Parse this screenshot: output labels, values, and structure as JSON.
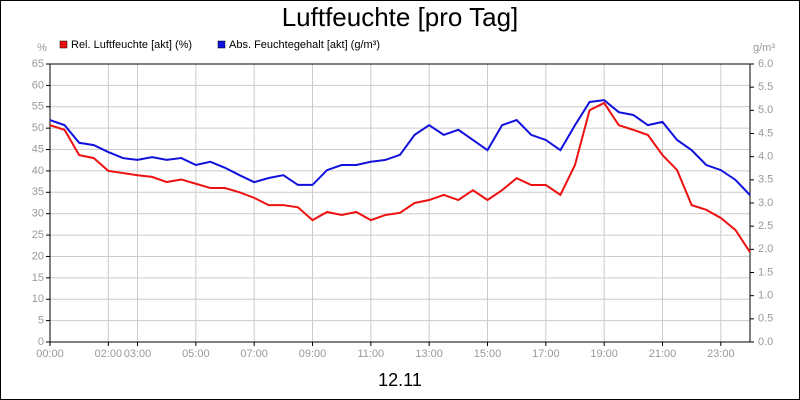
{
  "chart_data": {
    "type": "line",
    "title": "Luftfeuchte [pro Tag]",
    "xlabel": "12.11",
    "ylabel": "%",
    "y2label": "g/m³",
    "x": [
      0,
      0.5,
      1,
      1.5,
      2,
      2.5,
      3,
      3.5,
      4,
      4.5,
      5,
      5.5,
      6,
      6.5,
      7,
      7.5,
      8,
      8.5,
      9,
      9.5,
      10,
      10.5,
      11,
      11.5,
      12,
      12.5,
      13,
      13.5,
      14,
      14.5,
      15,
      15.5,
      16,
      16.5,
      17,
      17.5,
      18,
      18.5,
      19,
      19.5,
      20,
      20.5,
      21,
      21.5,
      22,
      22.5,
      23,
      23.5,
      24
    ],
    "xlim": [
      0,
      24
    ],
    "xticks": [
      {
        "value": 0,
        "label": "00:00"
      },
      {
        "value": 2,
        "label": "02:00"
      },
      {
        "value": 3,
        "label": "03:00"
      },
      {
        "value": 5,
        "label": "05:00"
      },
      {
        "value": 7,
        "label": "07:00"
      },
      {
        "value": 9,
        "label": "09:00"
      },
      {
        "value": 11,
        "label": "11:00"
      },
      {
        "value": 13,
        "label": "13:00"
      },
      {
        "value": 15,
        "label": "15:00"
      },
      {
        "value": 17,
        "label": "17:00"
      },
      {
        "value": 19,
        "label": "19:00"
      },
      {
        "value": 21,
        "label": "21:00"
      },
      {
        "value": 23,
        "label": "23:00"
      }
    ],
    "ylim": [
      0,
      65
    ],
    "yticks": [
      0,
      5,
      10,
      15,
      20,
      25,
      30,
      35,
      40,
      45,
      50,
      55,
      60,
      65
    ],
    "y2lim": [
      0,
      6
    ],
    "y2ticks": [
      {
        "value": 0,
        "label": "0.0"
      },
      0.5,
      {
        "value": 1,
        "label": "1.0"
      },
      1.5,
      {
        "value": 2,
        "label": "2.0"
      },
      2.5,
      {
        "value": 3,
        "label": "3.0"
      },
      3.5,
      {
        "value": 4,
        "label": "4.0"
      },
      4.5,
      {
        "value": 5,
        "label": "5.0"
      },
      5.5,
      {
        "value": 6,
        "label": "6.0"
      }
    ],
    "grid": true,
    "series": [
      {
        "name": "Rel. Luftfeuchte [akt] (%)",
        "color": "#ee1111",
        "values": [
          50.7,
          49.6,
          43.7,
          43,
          40,
          39.5,
          39,
          38.6,
          37.4,
          38,
          37,
          36,
          36,
          35,
          33.7,
          32,
          32,
          31.5,
          28.5,
          30.4,
          29.7,
          30.4,
          28.5,
          29.7,
          30.2,
          32.5,
          33.2,
          34.4,
          33.2,
          35.5,
          33.2,
          35.5,
          38.3,
          36.7,
          36.7,
          34.4,
          41.4,
          54.2,
          55.9,
          50.7,
          49.6,
          48.4,
          43.7,
          40.2,
          32,
          30.9,
          29,
          26.2,
          21
        ]
      },
      {
        "name": "Abs. Feuchtegehalt [akt] (g/m³)",
        "color": "#1111dd",
        "axis": "y2",
        "values": [
          4.79,
          4.68,
          4.3,
          4.25,
          4.1,
          3.97,
          3.93,
          3.99,
          3.93,
          3.97,
          3.82,
          3.89,
          3.76,
          3.6,
          3.45,
          3.54,
          3.6,
          3.39,
          3.39,
          3.71,
          3.82,
          3.82,
          3.89,
          3.93,
          4.04,
          4.47,
          4.68,
          4.47,
          4.58,
          4.36,
          4.14,
          4.68,
          4.79,
          4.47,
          4.36,
          4.14,
          4.68,
          5.18,
          5.22,
          4.96,
          4.9,
          4.68,
          4.75,
          4.36,
          4.14,
          3.82,
          3.71,
          3.5,
          3.17
        ]
      }
    ]
  }
}
